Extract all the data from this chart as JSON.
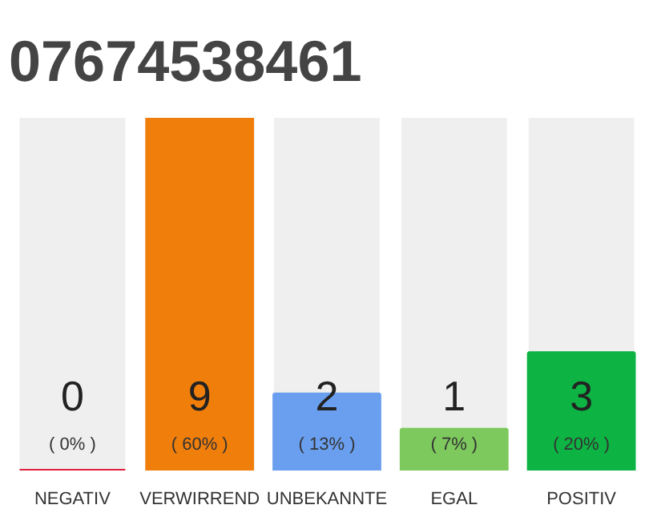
{
  "chart_data": {
    "type": "bar",
    "title": "07674538461",
    "categories": [
      "NEGATIV",
      "VERWIRREND",
      "UNBEKANNTE",
      "EGAL",
      "POSITIV"
    ],
    "values": [
      0,
      60,
      13,
      7,
      20
    ],
    "colors": [
      "#e0203c",
      "#f07e0b",
      "#6a9fef",
      "#7dc95e",
      "#0db343"
    ],
    "value_labels": [
      "( 0% )",
      "( 60% )",
      "( 13% )",
      "( 7% )",
      "( 20% )"
    ],
    "annotations": [
      "0",
      "9",
      "2",
      "1",
      "3"
    ],
    "grid": false
  }
}
